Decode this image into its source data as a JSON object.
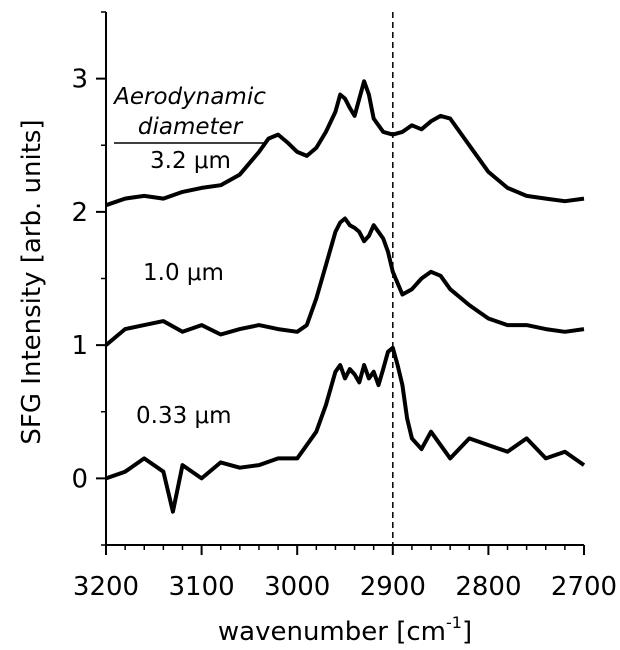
{
  "chart_data": {
    "type": "line",
    "xlabel": "wavenumber [cm",
    "xlabel_sup": "-1",
    "xlabel_tail": "]",
    "ylabel": "SFG Intensity [arb. units]",
    "xlim": [
      3200,
      2700
    ],
    "ylim": [
      -0.5,
      3.5
    ],
    "x_ticks": [
      3200,
      3100,
      3000,
      2900,
      2800,
      2700
    ],
    "y_ticks": [
      0,
      1,
      2,
      3
    ],
    "grid": false,
    "reference_line": {
      "x": 2900,
      "style": "dashed"
    },
    "legend_header": [
      "Aerodynamic",
      "diameter"
    ],
    "series": [
      {
        "name": "3.2 μm",
        "x": [
          3200,
          3180,
          3160,
          3140,
          3120,
          3100,
          3080,
          3060,
          3040,
          3030,
          3020,
          3010,
          3000,
          2990,
          2980,
          2970,
          2960,
          2955,
          2950,
          2945,
          2940,
          2935,
          2930,
          2925,
          2920,
          2910,
          2900,
          2890,
          2880,
          2870,
          2860,
          2850,
          2840,
          2830,
          2820,
          2800,
          2780,
          2760,
          2740,
          2720,
          2700
        ],
        "values": [
          2.05,
          2.1,
          2.12,
          2.1,
          2.15,
          2.18,
          2.2,
          2.28,
          2.45,
          2.55,
          2.58,
          2.52,
          2.45,
          2.42,
          2.48,
          2.6,
          2.75,
          2.88,
          2.85,
          2.78,
          2.72,
          2.85,
          2.98,
          2.88,
          2.7,
          2.6,
          2.58,
          2.6,
          2.65,
          2.62,
          2.68,
          2.72,
          2.7,
          2.6,
          2.5,
          2.3,
          2.18,
          2.12,
          2.1,
          2.08,
          2.1
        ]
      },
      {
        "name": "1.0 μm",
        "x": [
          3200,
          3180,
          3160,
          3140,
          3120,
          3100,
          3080,
          3060,
          3040,
          3020,
          3000,
          2990,
          2980,
          2970,
          2960,
          2955,
          2950,
          2945,
          2940,
          2935,
          2930,
          2925,
          2920,
          2915,
          2910,
          2905,
          2900,
          2890,
          2880,
          2870,
          2860,
          2850,
          2840,
          2820,
          2800,
          2780,
          2760,
          2740,
          2720,
          2700
        ],
        "values": [
          1.0,
          1.12,
          1.15,
          1.18,
          1.1,
          1.15,
          1.08,
          1.12,
          1.15,
          1.12,
          1.1,
          1.15,
          1.35,
          1.6,
          1.85,
          1.92,
          1.95,
          1.9,
          1.88,
          1.85,
          1.78,
          1.82,
          1.9,
          1.85,
          1.8,
          1.7,
          1.55,
          1.38,
          1.42,
          1.5,
          1.55,
          1.52,
          1.42,
          1.3,
          1.2,
          1.15,
          1.15,
          1.12,
          1.1,
          1.12
        ]
      },
      {
        "name": "0.33 μm",
        "x": [
          3200,
          3180,
          3160,
          3140,
          3130,
          3120,
          3100,
          3080,
          3060,
          3040,
          3020,
          3000,
          2990,
          2980,
          2970,
          2960,
          2955,
          2950,
          2945,
          2940,
          2935,
          2930,
          2925,
          2920,
          2915,
          2910,
          2905,
          2900,
          2895,
          2890,
          2885,
          2880,
          2870,
          2860,
          2840,
          2820,
          2800,
          2780,
          2760,
          2740,
          2720,
          2700
        ],
        "values": [
          0.0,
          0.05,
          0.15,
          0.05,
          -0.25,
          0.1,
          0.0,
          0.12,
          0.08,
          0.1,
          0.15,
          0.15,
          0.25,
          0.35,
          0.55,
          0.8,
          0.85,
          0.75,
          0.82,
          0.78,
          0.72,
          0.85,
          0.75,
          0.8,
          0.7,
          0.82,
          0.95,
          0.98,
          0.85,
          0.7,
          0.45,
          0.3,
          0.22,
          0.35,
          0.15,
          0.3,
          0.25,
          0.2,
          0.3,
          0.15,
          0.2,
          0.1
        ]
      }
    ]
  }
}
